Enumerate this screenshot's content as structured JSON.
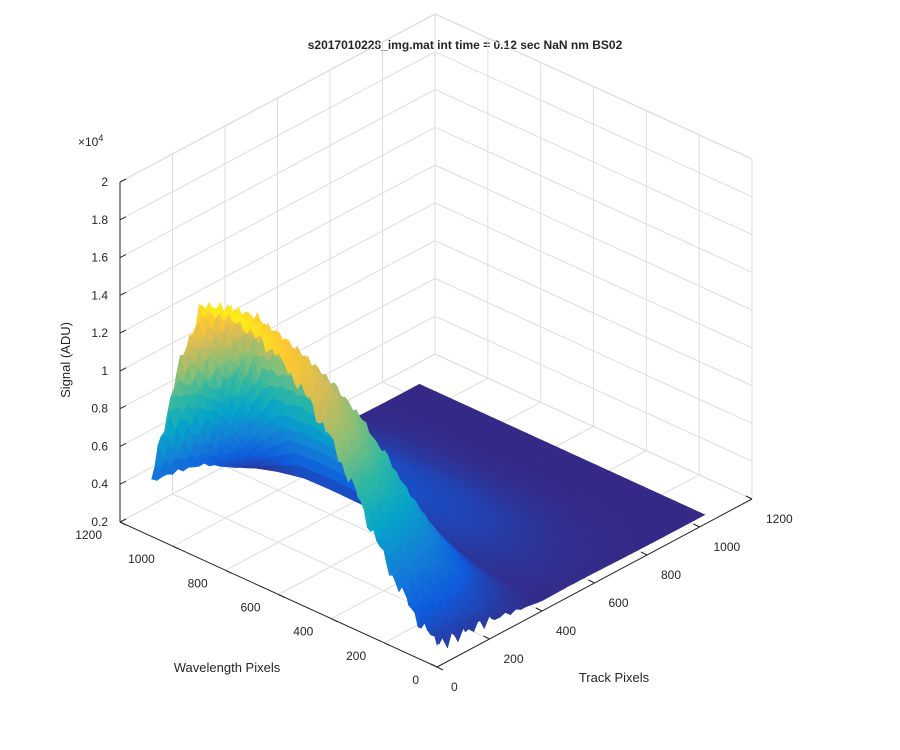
{
  "chart_data": {
    "type": "surface3d",
    "title": "s2017010228_img.mat int time = 0.12 sec  NaN nm BS02",
    "xlabel": "Track Pixels",
    "ylabel": "Wavelength Pixels",
    "zlabel": "Signal (ADU)",
    "z_exponent_label": "×10",
    "z_exponent_value": "4",
    "x_range": [
      0,
      1200
    ],
    "y_range": [
      0,
      1200
    ],
    "z_range": [
      2000,
      20000
    ],
    "x_ticks": [
      "0",
      "200",
      "400",
      "600",
      "800",
      "1000",
      "1200"
    ],
    "y_ticks": [
      "0",
      "200",
      "400",
      "600",
      "800",
      "1000",
      "1200"
    ],
    "z_ticks": [
      "0.2",
      "0.4",
      "0.6",
      "0.8",
      "1",
      "1.2",
      "1.4",
      "1.6",
      "1.8",
      "2"
    ],
    "grid": true,
    "colormap": [
      "#352a87",
      "#0f5cdd",
      "#1481d6",
      "#06a4ca",
      "#2eb7a4",
      "#87bf77",
      "#d1bb59",
      "#fec832",
      "#f9fb0e"
    ],
    "profile_track_pixels": [
      0,
      100,
      200,
      300,
      400,
      500,
      600,
      700,
      800,
      900,
      1000
    ],
    "track_profile_peak_fraction": [
      0.98,
      0.9,
      0.74,
      0.38,
      0.06,
      0.1,
      0.08,
      0.04,
      0.01,
      0.0,
      0.0
    ],
    "profile_wavelength_pixels": [
      0,
      100,
      200,
      300,
      400,
      500,
      600,
      700,
      800,
      900,
      1000,
      1100
    ],
    "wavelength_envelope_fraction": [
      0.05,
      0.15,
      0.3,
      0.5,
      0.68,
      0.82,
      0.92,
      0.97,
      1.0,
      0.96,
      0.6,
      0.08
    ],
    "baseline_signal": 2500,
    "peak_signal": 16000
  }
}
